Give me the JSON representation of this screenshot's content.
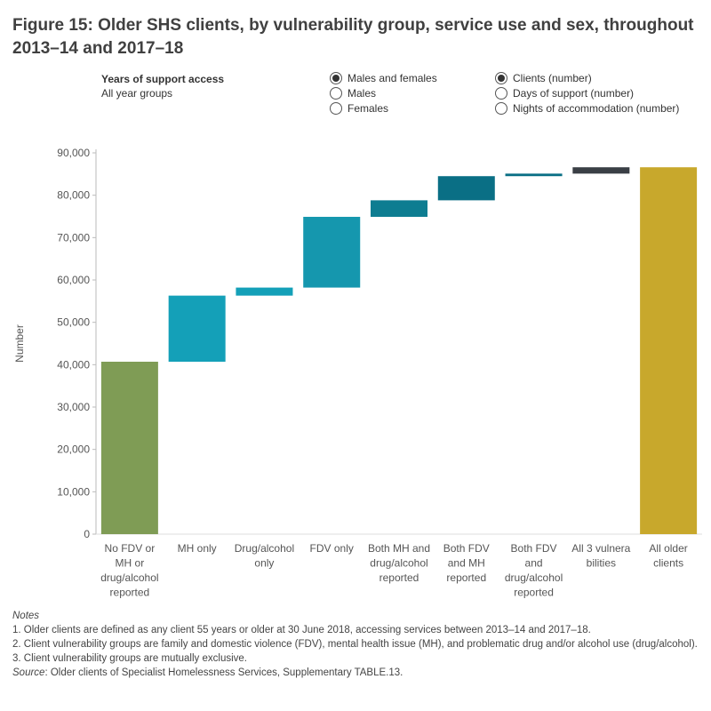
{
  "title": "Figure 15: Older SHS clients, by vulnerability group, service use and sex, throughout 2013–14 and 2017–18",
  "filter": {
    "label": "Years of support access",
    "value": "All year groups"
  },
  "sex_options": [
    {
      "label": "Males and females",
      "checked": true
    },
    {
      "label": "Males",
      "checked": false
    },
    {
      "label": "Females",
      "checked": false
    }
  ],
  "measure_options": [
    {
      "label": "Clients (number)",
      "checked": true
    },
    {
      "label": "Days of support (number)",
      "checked": false
    },
    {
      "label": "Nights of accommodation (number)",
      "checked": false
    }
  ],
  "chart_data": {
    "type": "bar",
    "subtype": "waterfall",
    "title": "",
    "xlabel": "",
    "ylabel": "Number",
    "ylim": [
      0,
      90000
    ],
    "yticks": [
      0,
      10000,
      20000,
      30000,
      40000,
      50000,
      60000,
      70000,
      80000,
      90000
    ],
    "ytick_labels": [
      "0",
      "10,000",
      "20,000",
      "30,000",
      "40,000",
      "50,000",
      "60,000",
      "70,000",
      "80,000",
      "90,000"
    ],
    "grid": false,
    "categories": [
      [
        "No FDV or",
        "MH or",
        "drug/alcohol",
        "reported"
      ],
      [
        "MH only"
      ],
      [
        "Drug/alcohol",
        "only"
      ],
      [
        "FDV only"
      ],
      [
        "Both MH and",
        "drug/alcohol",
        "reported"
      ],
      [
        "Both FDV",
        "and MH",
        "reported"
      ],
      [
        "Both FDV",
        "and",
        "drug/alcohol",
        "reported"
      ],
      [
        "All 3 vulnera",
        "bilities"
      ],
      [
        "All older",
        "clients"
      ]
    ],
    "bars": [
      {
        "start": 0,
        "end": 40700,
        "color": "#7f9c55"
      },
      {
        "start": 40700,
        "end": 56300,
        "color": "#14a0b8"
      },
      {
        "start": 56300,
        "end": 58200,
        "color": "#14a0b8"
      },
      {
        "start": 58200,
        "end": 74900,
        "color": "#1597ae"
      },
      {
        "start": 74900,
        "end": 78800,
        "color": "#0e7d91"
      },
      {
        "start": 78800,
        "end": 84500,
        "color": "#0a6f85"
      },
      {
        "start": 84500,
        "end": 85100,
        "color": "#0a6f85"
      },
      {
        "start": 85100,
        "end": 86600,
        "color": "#3a3f45"
      },
      {
        "start": 0,
        "end": 86600,
        "color": "#c8a82c"
      }
    ]
  },
  "notes": {
    "heading": "Notes",
    "lines": [
      "1. Older clients are defined as any client 55 years or older at 30 June 2018, accessing services between 2013–14 and 2017–18.",
      "2. Client vulnerability groups are family and domestic violence (FDV), mental health issue (MH), and problematic drug and/or alcohol use (drug/alcohol).",
      "3. Client vulnerability groups are mutually exclusive."
    ],
    "source_label": "Source",
    "source_text": ": Older clients of Specialist Homelessness Services, Supplementary TABLE.13."
  }
}
